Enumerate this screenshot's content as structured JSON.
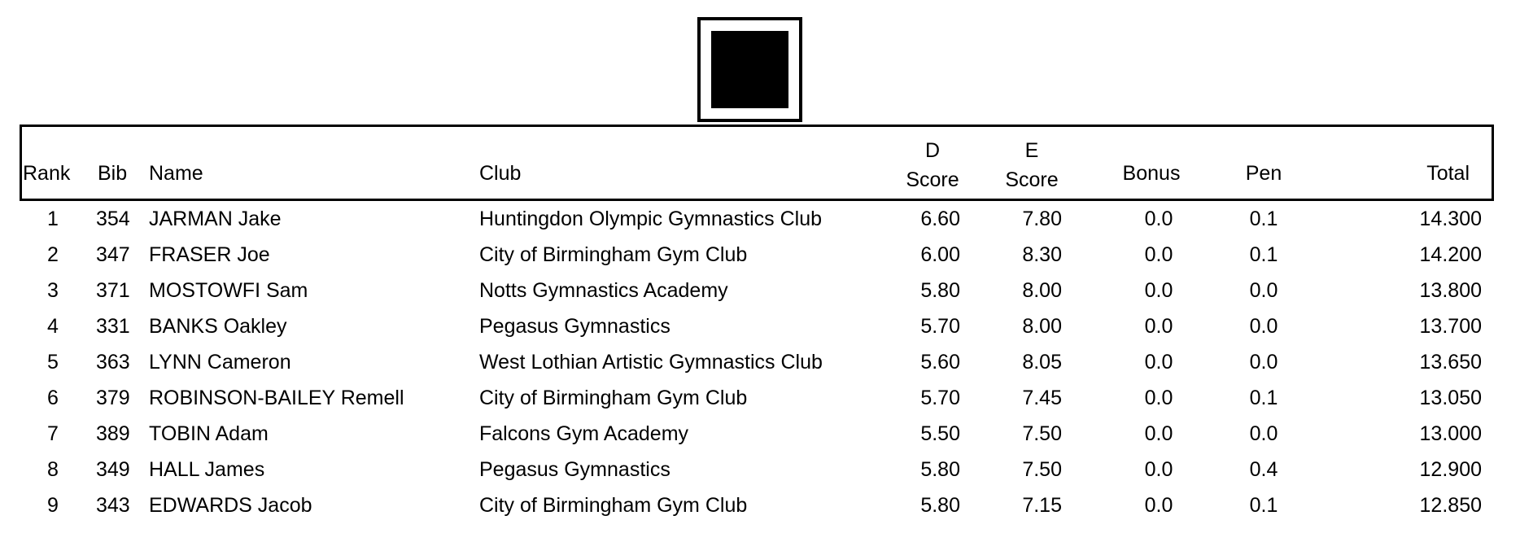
{
  "header": {
    "rank": "Rank",
    "bib": "Bib",
    "name": "Name",
    "club": "Club",
    "d_score_1": "D",
    "d_score_2": "Score",
    "e_score_1": "E",
    "e_score_2": "Score",
    "bonus": "Bonus",
    "pen": "Pen",
    "total": "Total"
  },
  "rows": [
    {
      "rank": "1",
      "bib": "354",
      "name": "JARMAN Jake",
      "club": "Huntingdon Olympic Gymnastics Club",
      "d": "6.60",
      "e": "7.80",
      "bonus": "0.0",
      "pen": "0.1",
      "total": "14.300"
    },
    {
      "rank": "2",
      "bib": "347",
      "name": "FRASER Joe",
      "club": "City of Birmingham Gym Club",
      "d": "6.00",
      "e": "8.30",
      "bonus": "0.0",
      "pen": "0.1",
      "total": "14.200"
    },
    {
      "rank": "3",
      "bib": "371",
      "name": "MOSTOWFI Sam",
      "club": "Notts Gymnastics Academy",
      "d": "5.80",
      "e": "8.00",
      "bonus": "0.0",
      "pen": "0.0",
      "total": "13.800"
    },
    {
      "rank": "4",
      "bib": "331",
      "name": "BANKS Oakley",
      "club": "Pegasus Gymnastics",
      "d": "5.70",
      "e": "8.00",
      "bonus": "0.0",
      "pen": "0.0",
      "total": "13.700"
    },
    {
      "rank": "5",
      "bib": "363",
      "name": "LYNN Cameron",
      "club": "West Lothian Artistic Gymnastics Club",
      "d": "5.60",
      "e": "8.05",
      "bonus": "0.0",
      "pen": "0.0",
      "total": "13.650"
    },
    {
      "rank": "6",
      "bib": "379",
      "name": "ROBINSON-BAILEY Remell",
      "club": "City of Birmingham Gym Club",
      "d": "5.70",
      "e": "7.45",
      "bonus": "0.0",
      "pen": "0.1",
      "total": "13.050"
    },
    {
      "rank": "7",
      "bib": "389",
      "name": "TOBIN Adam",
      "club": "Falcons Gym Academy",
      "d": "5.50",
      "e": "7.50",
      "bonus": "0.0",
      "pen": "0.0",
      "total": "13.000"
    },
    {
      "rank": "8",
      "bib": "349",
      "name": "HALL James",
      "club": "Pegasus Gymnastics",
      "d": "5.80",
      "e": "7.50",
      "bonus": "0.0",
      "pen": "0.4",
      "total": "12.900"
    },
    {
      "rank": "9",
      "bib": "343",
      "name": "EDWARDS Jacob",
      "club": "City of Birmingham Gym Club",
      "d": "5.80",
      "e": "7.15",
      "bonus": "0.0",
      "pen": "0.1",
      "total": "12.850"
    }
  ]
}
